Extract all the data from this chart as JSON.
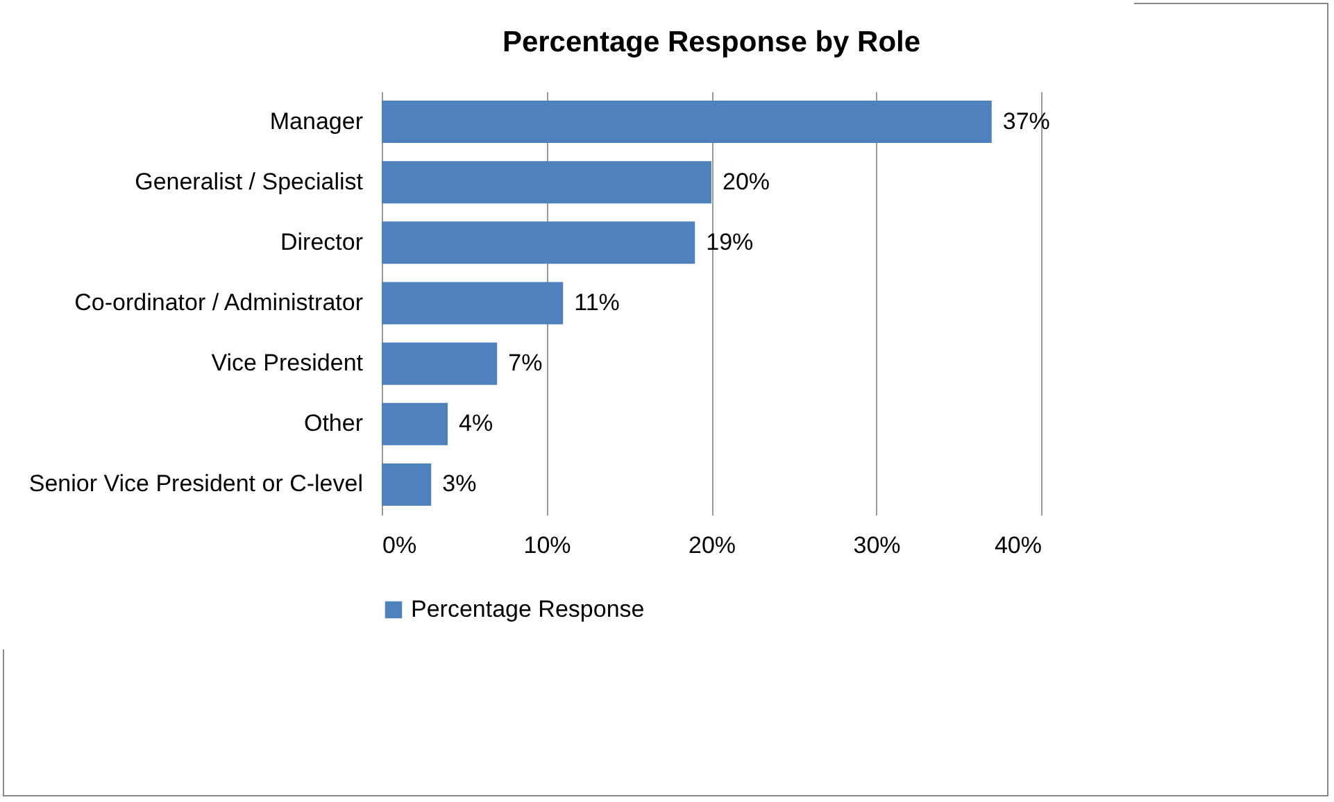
{
  "chart_data": {
    "type": "bar",
    "orientation": "horizontal",
    "title": "Percentage Response by Role",
    "categories": [
      "Manager",
      "Generalist / Specialist",
      "Director",
      "Co-ordinator / Administrator",
      "Vice President",
      "Other",
      "Senior Vice President or C-level"
    ],
    "series": [
      {
        "name": "Percentage Response",
        "color": "#4f81bd",
        "values": [
          37,
          20,
          19,
          11,
          7,
          4,
          3
        ],
        "value_labels": [
          "37%",
          "20%",
          "19%",
          "11%",
          "7%",
          "4%",
          "3%"
        ]
      }
    ],
    "xlim": [
      0,
      40
    ],
    "xticks": [
      {
        "value": 0,
        "label": "0%"
      },
      {
        "value": 10,
        "label": "10%"
      },
      {
        "value": 20,
        "label": "20%"
      },
      {
        "value": 30,
        "label": "30%"
      },
      {
        "value": 40,
        "label": "40%"
      }
    ],
    "grid": "x",
    "legend": "bottom"
  }
}
